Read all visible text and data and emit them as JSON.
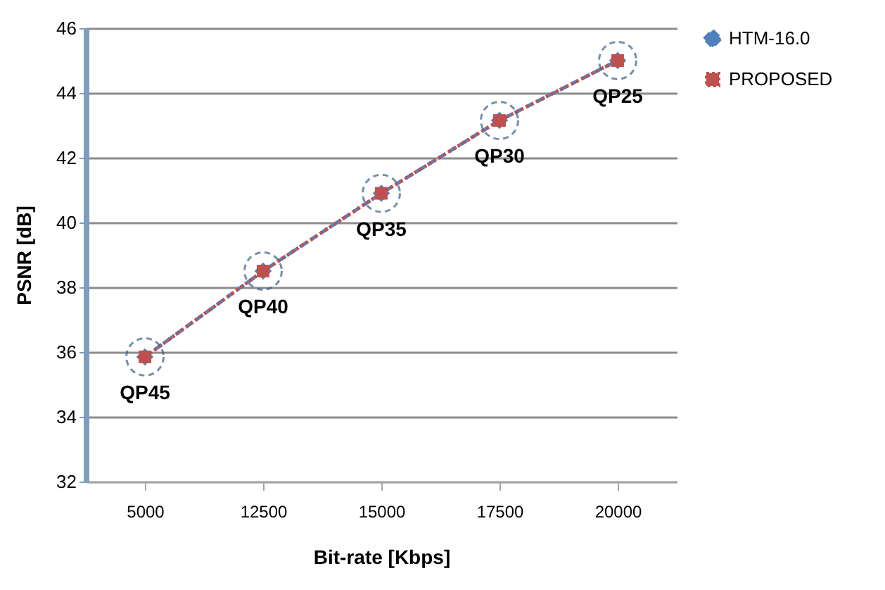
{
  "chart_data": {
    "type": "line",
    "xlabel": "Bit-rate [Kbps]",
    "ylabel": "PSNR [dB]",
    "categories": [
      "5000",
      "12500",
      "15000",
      "17500",
      "20000"
    ],
    "series": [
      {
        "name": "HTM-16.0",
        "color": "#4f81bd",
        "values": [
          35.85,
          38.5,
          40.9,
          43.15,
          45.0
        ],
        "marker": "diamond",
        "line_style": "dashed"
      },
      {
        "name": "PROPOSED",
        "color": "#c0504d",
        "values": [
          35.85,
          38.5,
          40.9,
          43.15,
          45.0
        ],
        "marker": "square",
        "line_style": "dotted"
      }
    ],
    "ylim": [
      32,
      46
    ],
    "yticks": [
      32,
      34,
      36,
      38,
      40,
      42,
      44,
      46
    ],
    "grid": "y",
    "legend": "right",
    "annotations": [
      {
        "text": "QP45",
        "x": "5000",
        "y": 35.85
      },
      {
        "text": "QP40",
        "x": "12500",
        "y": 38.5
      },
      {
        "text": "QP35",
        "x": "15000",
        "y": 40.9
      },
      {
        "text": "QP30",
        "x": "17500",
        "y": 43.15
      },
      {
        "text": "QP25",
        "x": "20000",
        "y": 45.0
      }
    ]
  }
}
